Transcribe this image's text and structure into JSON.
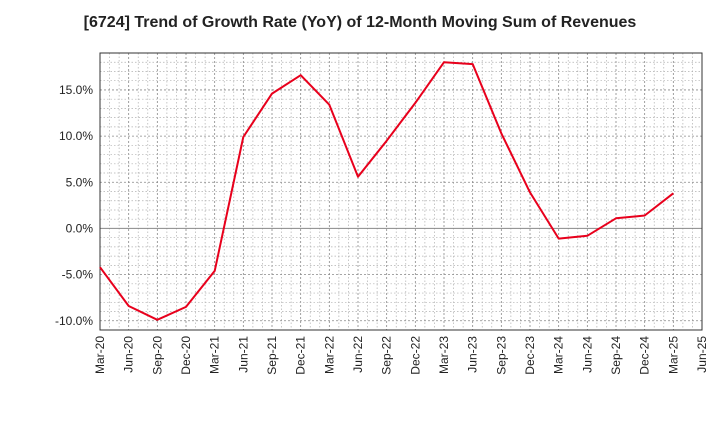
{
  "chart_data": {
    "type": "line",
    "title": "[6724]  Trend of Growth Rate (YoY) of 12-Month Moving Sum of Revenues",
    "xlabel": "",
    "ylabel": "",
    "x_ticks": [
      "Mar-20",
      "Jun-20",
      "Sep-20",
      "Dec-20",
      "Mar-21",
      "Jun-21",
      "Sep-21",
      "Dec-21",
      "Mar-22",
      "Jun-22",
      "Sep-22",
      "Dec-22",
      "Mar-23",
      "Jun-23",
      "Sep-23",
      "Dec-23",
      "Mar-24",
      "Jun-24",
      "Sep-24",
      "Dec-24",
      "Mar-25",
      "Jun-25"
    ],
    "y_ticks": [
      "-10.0%",
      "-5.0%",
      "0.0%",
      "5.0%",
      "10.0%",
      "15.0%"
    ],
    "y_tick_values": [
      -10,
      -5,
      0,
      5,
      10,
      15
    ],
    "ylim": [
      -11,
      19
    ],
    "grid": true,
    "series": [
      {
        "color": "#e8001c",
        "x": [
          "Mar-20",
          "Jun-20",
          "Sep-20",
          "Dec-20",
          "Mar-21",
          "Jun-21",
          "Sep-21",
          "Dec-21",
          "Mar-22",
          "Jun-22",
          "Sep-22",
          "Dec-22",
          "Mar-23",
          "Jun-23",
          "Sep-23",
          "Dec-23",
          "Mar-24",
          "Jun-24",
          "Sep-24",
          "Dec-24",
          "Mar-25"
        ],
        "values": [
          -4.2,
          -8.4,
          -9.9,
          -8.5,
          -4.6,
          9.9,
          14.6,
          16.6,
          13.4,
          5.6,
          9.5,
          13.6,
          18.0,
          17.8,
          10.3,
          3.9,
          -1.1,
          -0.8,
          1.1,
          1.4,
          3.8
        ]
      }
    ]
  }
}
